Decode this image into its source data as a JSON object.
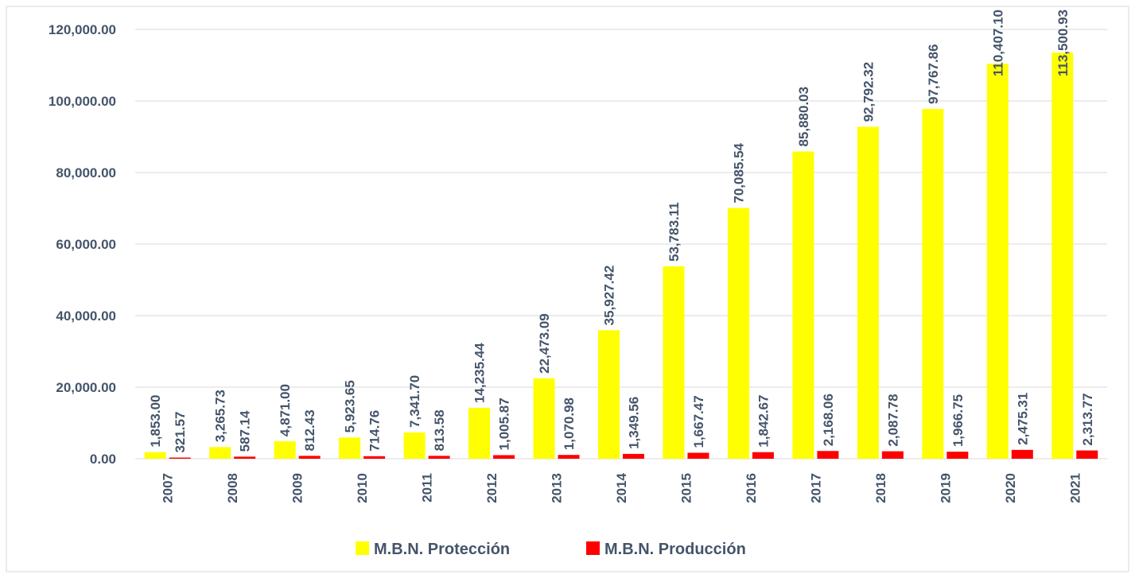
{
  "chart_data": {
    "type": "bar",
    "categories": [
      "2007",
      "2008",
      "2009",
      "2010",
      "2011",
      "2012",
      "2013",
      "2014",
      "2015",
      "2016",
      "2017",
      "2018",
      "2019",
      "2020",
      "2021"
    ],
    "series": [
      {
        "name": "M.B.N. Protección",
        "color": "#ffff00",
        "values": [
          1853.0,
          3265.73,
          4871.0,
          5923.65,
          7341.7,
          14235.44,
          22473.09,
          35927.42,
          53783.11,
          70085.54,
          85880.03,
          92792.32,
          97767.86,
          110407.1,
          113500.93
        ],
        "value_labels": [
          "1,853.00",
          "3,265.73",
          "4,871.00",
          "5,923.65",
          "7,341.70",
          "14,235.44",
          "22,473.09",
          "35,927.42",
          "53,783.11",
          "70,085.54",
          "85,880.03",
          "92,792.32",
          "97,767.86",
          "110,407.10",
          "113,500.93"
        ]
      },
      {
        "name": "M.B.N. Producción",
        "color": "#ff0000",
        "values": [
          321.57,
          587.14,
          812.43,
          714.76,
          813.58,
          1005.87,
          1070.98,
          1349.56,
          1667.47,
          1842.67,
          2168.06,
          2087.78,
          1966.75,
          2475.31,
          2313.77
        ],
        "value_labels": [
          "321.57",
          "587.14",
          "812.43",
          "714.76",
          "813.58",
          "1,005.87",
          "1,070.98",
          "1,349.56",
          "1,667.47",
          "1,842.67",
          "2,168.06",
          "2,087.78",
          "1,966.75",
          "2,475.31",
          "2,313.77"
        ]
      }
    ],
    "ylim": [
      0,
      120000
    ],
    "yticks": [
      {
        "value": 0,
        "label": "0.00"
      },
      {
        "value": 20000,
        "label": "20,000.00"
      },
      {
        "value": 40000,
        "label": "40,000.00"
      },
      {
        "value": 60000,
        "label": "60,000.00"
      },
      {
        "value": 80000,
        "label": "80,000.00"
      },
      {
        "value": 100000,
        "label": "100,000.00"
      },
      {
        "value": 120000,
        "label": "120,000.00"
      }
    ],
    "grid": true,
    "legend": "bottom"
  }
}
